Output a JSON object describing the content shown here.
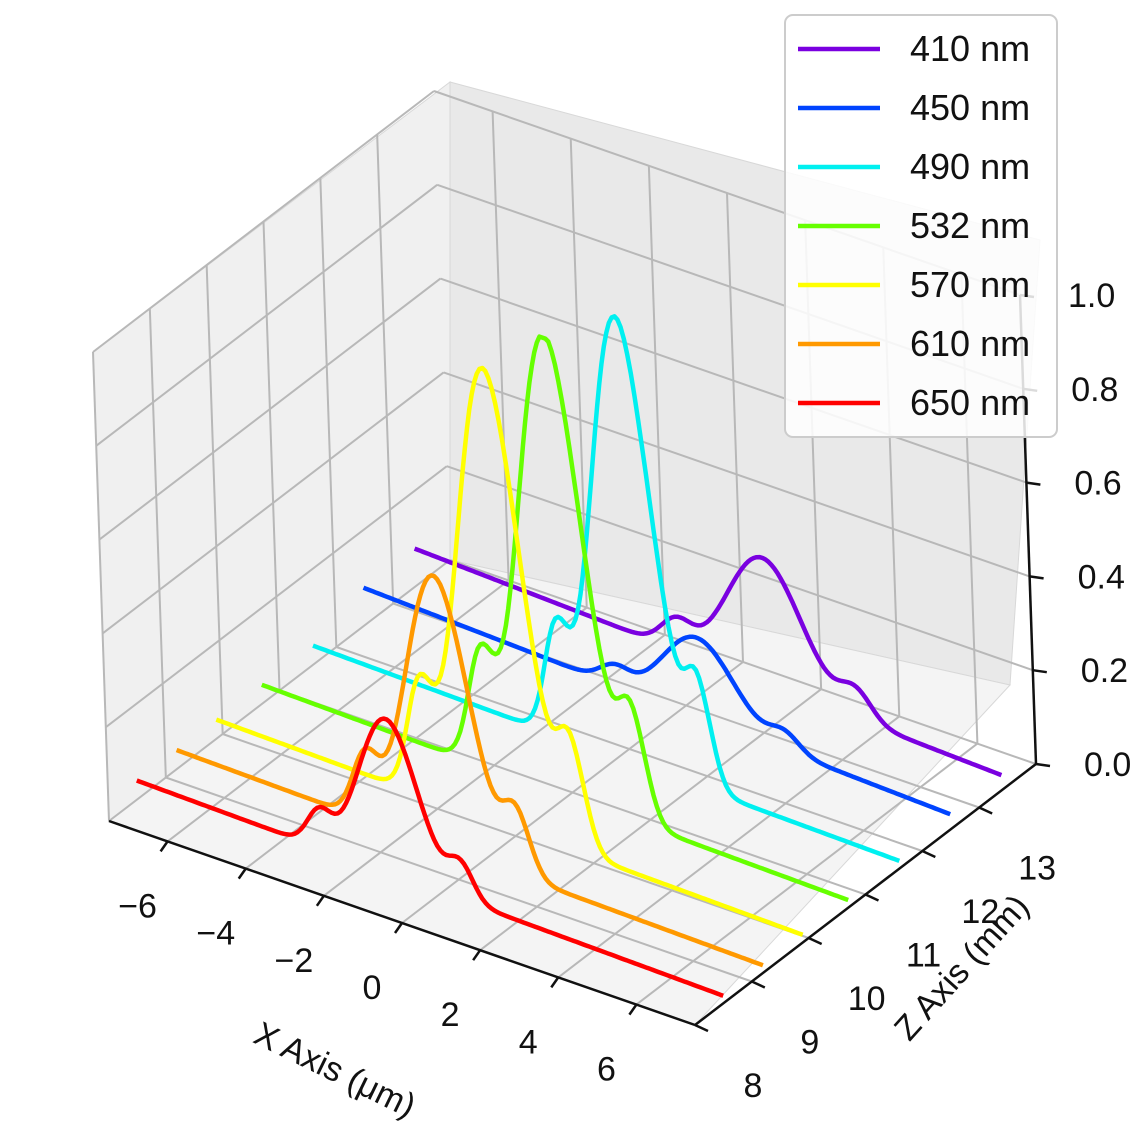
{
  "chart_data": {
    "type": "line",
    "projection": "3d",
    "title": "",
    "xlabel": "X Axis (μm)",
    "ylabel": "Z Axis (mm)",
    "zlabel": "",
    "xlim": [
      -7.5,
      7.5
    ],
    "ylim": [
      8,
      14
    ],
    "zlim": [
      0,
      1.0
    ],
    "x_ticks": [
      -6,
      -4,
      -2,
      0,
      2,
      4,
      6
    ],
    "y_ticks": [
      8,
      9,
      10,
      11,
      12,
      13
    ],
    "z_ticks": [
      "0.0",
      "0.2",
      "0.4",
      "0.6",
      "0.8",
      "1.0"
    ],
    "grid": true,
    "legend_position": "top-right",
    "x_range_of_curves": [
      -7.5,
      7.5
    ],
    "series": [
      {
        "name": "410 nm",
        "color": "#7a00e0",
        "z_position": 13.4,
        "peak_x": 1.5,
        "peak_height": 0.27,
        "width": 0.95,
        "baseline": 0.08
      },
      {
        "name": "450 nm",
        "color": "#0044ff",
        "z_position": 12.5,
        "peak_x": 1.1,
        "peak_height": 0.17,
        "width": 0.9,
        "baseline": 0.08
      },
      {
        "name": "490 nm",
        "color": "#00f0f0",
        "z_position": 11.6,
        "peak_x": 0.6,
        "peak_height": 0.95,
        "width": 0.75,
        "baseline": 0.04
      },
      {
        "name": "532 nm",
        "color": "#66ff00",
        "z_position": 10.7,
        "peak_x": 0.1,
        "peak_height": 0.98,
        "width": 0.8,
        "baseline": 0.04
      },
      {
        "name": "570 nm",
        "color": "#ffff00",
        "z_position": 9.9,
        "peak_x": -0.3,
        "peak_height": 0.97,
        "width": 0.8,
        "baseline": 0.04
      },
      {
        "name": "610 nm",
        "color": "#ff9900",
        "z_position": 9.2,
        "peak_x": -0.7,
        "peak_height": 0.58,
        "width": 0.8,
        "baseline": 0.04
      },
      {
        "name": "650 nm",
        "color": "#ff0000",
        "z_position": 8.5,
        "peak_x": -1.0,
        "peak_height": 0.33,
        "width": 0.75,
        "baseline": 0.04
      }
    ]
  }
}
